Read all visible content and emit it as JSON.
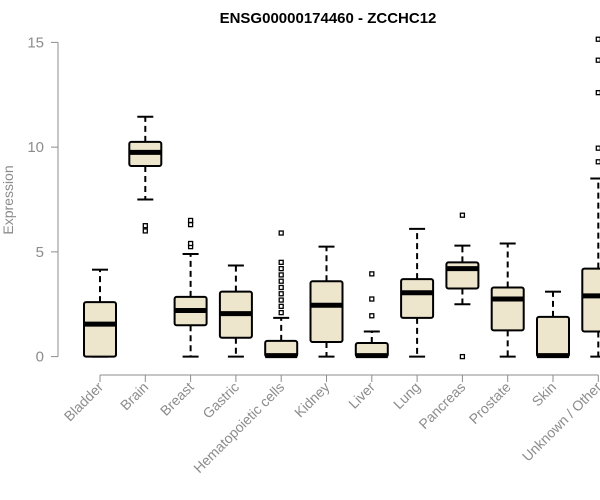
{
  "chart_data": {
    "type": "boxplot",
    "title": "ENSG00000174460 - ZCCHC12",
    "xlabel": "",
    "ylabel": "Expression",
    "ylim": [
      -0.4,
      15.4
    ],
    "yticks": [
      0,
      5,
      10,
      15
    ],
    "colors": {
      "box_fill": "#ede5cc",
      "stroke": "#000000",
      "axis": "#8c8c8c",
      "text_muted": "#8c8c8c"
    },
    "categories": [
      "Bladder",
      "Brain",
      "Breast",
      "Gastric",
      "Hematopoietic cells",
      "Kidney",
      "Liver",
      "Lung",
      "Pancreas",
      "Prostate",
      "Skin",
      "Unknown / Other"
    ],
    "boxes": [
      {
        "category": "Bladder",
        "whisker_low": 0,
        "q1": 0,
        "median": 1.55,
        "q3": 2.6,
        "whisker_high": 4.15,
        "outliers": []
      },
      {
        "category": "Brain",
        "whisker_low": 7.5,
        "q1": 9.1,
        "median": 9.75,
        "q3": 10.25,
        "whisker_high": 11.45,
        "outliers": [
          6.0,
          6.25
        ]
      },
      {
        "category": "Breast",
        "whisker_low": 0,
        "q1": 1.5,
        "median": 2.2,
        "q3": 2.85,
        "whisker_high": 4.9,
        "outliers": [
          5.25,
          5.4,
          6.3,
          6.5
        ]
      },
      {
        "category": "Gastric",
        "whisker_low": 0,
        "q1": 0.9,
        "median": 2.05,
        "q3": 3.1,
        "whisker_high": 4.35,
        "outliers": []
      },
      {
        "category": "Hematopoietic cells",
        "whisker_low": 0,
        "q1": 0,
        "median": 0.05,
        "q3": 0.75,
        "whisker_high": 1.85,
        "outliers": [
          2.1,
          2.4,
          2.7,
          3.0,
          3.3,
          3.6,
          3.9,
          4.2,
          4.5,
          5.9
        ]
      },
      {
        "category": "Kidney",
        "whisker_low": 0,
        "q1": 0.7,
        "median": 2.45,
        "q3": 3.6,
        "whisker_high": 5.25,
        "outliers": []
      },
      {
        "category": "Liver",
        "whisker_low": 0,
        "q1": 0,
        "median": 0.05,
        "q3": 0.65,
        "whisker_high": 1.2,
        "outliers": [
          1.95,
          2.75,
          3.95
        ]
      },
      {
        "category": "Lung",
        "whisker_low": 0,
        "q1": 1.85,
        "median": 3.05,
        "q3": 3.7,
        "whisker_high": 6.1,
        "outliers": []
      },
      {
        "category": "Pancreas",
        "whisker_low": 2.5,
        "q1": 3.25,
        "median": 4.2,
        "q3": 4.5,
        "whisker_high": 5.3,
        "outliers": [
          0,
          6.75
        ]
      },
      {
        "category": "Prostate",
        "whisker_low": 0,
        "q1": 1.25,
        "median": 2.75,
        "q3": 3.3,
        "whisker_high": 5.4,
        "outliers": []
      },
      {
        "category": "Skin",
        "whisker_low": 0,
        "q1": 0,
        "median": 0.05,
        "q3": 1.9,
        "whisker_high": 3.1,
        "outliers": []
      },
      {
        "category": "Unknown / Other",
        "whisker_low": 0,
        "q1": 1.2,
        "median": 2.9,
        "q3": 4.2,
        "whisker_high": 8.5,
        "outliers": [
          9.3,
          9.95,
          12.6,
          14.15,
          15.15
        ]
      }
    ]
  }
}
